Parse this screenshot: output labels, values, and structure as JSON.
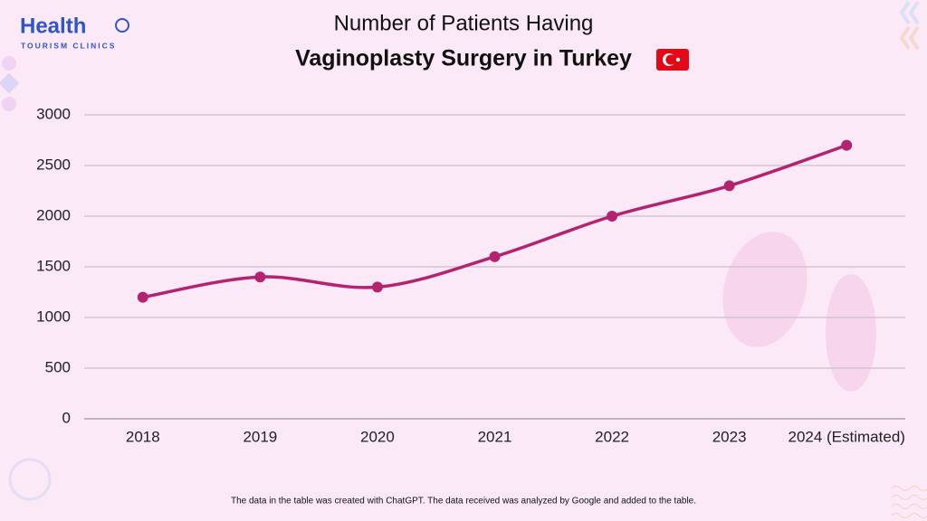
{
  "logo": {
    "name": "Health",
    "tagline": "TOURISM CLINICS"
  },
  "chart_data": {
    "type": "line",
    "title": "Number of Patients Having",
    "subtitle": "Vaginoplasty Surgery in Turkey",
    "categories": [
      "2018",
      "2019",
      "2020",
      "2021",
      "2022",
      "2023",
      "2024 (Estimated)"
    ],
    "values": [
      1200,
      1400,
      1300,
      1600,
      2000,
      2300,
      2700
    ],
    "color": "#b3236f",
    "ylim": [
      0,
      3000
    ],
    "yticks": [
      0,
      500,
      1000,
      1500,
      2000,
      2500,
      3000
    ],
    "grid": true
  },
  "footnote": "The data in the table was created with ChatGPT. The data received was analyzed by Google and added to the table."
}
